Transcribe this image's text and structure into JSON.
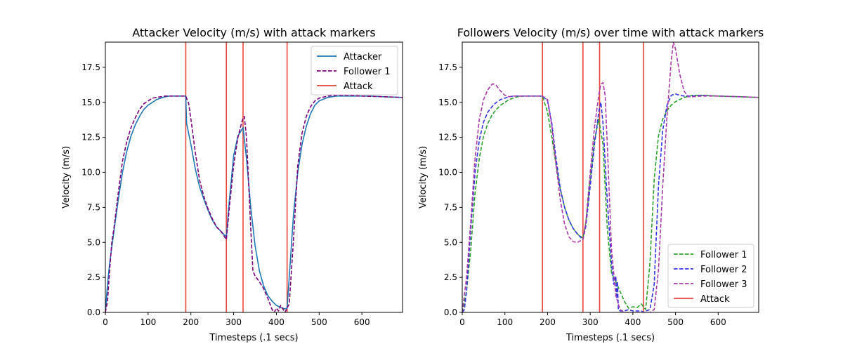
{
  "chart_data": [
    {
      "type": "line",
      "title": "Attacker Velocity (m/s) with attack markers",
      "xlabel": "Timesteps (.1 secs)",
      "ylabel": "Velocity (m/s)",
      "xlim": [
        0,
        695
      ],
      "ylim": [
        0,
        19.3
      ],
      "xticks": [
        0,
        100,
        200,
        300,
        400,
        500,
        600
      ],
      "yticks": [
        0.0,
        2.5,
        5.0,
        7.5,
        10.0,
        12.5,
        15.0,
        17.5
      ],
      "grid": false,
      "legend_position": "top-right",
      "attack_markers": [
        188,
        283,
        322,
        425
      ],
      "attack_label": "Attack",
      "attack_color": "#e8463a",
      "series": [
        {
          "name": "Attacker",
          "color": "#1f77b4",
          "dash": "solid",
          "x": [
            0,
            5,
            10,
            20,
            30,
            40,
            50,
            60,
            70,
            80,
            90,
            100,
            110,
            120,
            130,
            140,
            150,
            160,
            170,
            180,
            188,
            190,
            200,
            210,
            220,
            230,
            240,
            250,
            260,
            270,
            283,
            290,
            300,
            310,
            322,
            330,
            340,
            350,
            360,
            370,
            380,
            390,
            400,
            410,
            420,
            425,
            430,
            440,
            450,
            460,
            470,
            480,
            490,
            500,
            520,
            540,
            560,
            580,
            600,
            620,
            650,
            695
          ],
          "y": [
            0.0,
            2.0,
            3.5,
            5.8,
            8.0,
            10.0,
            11.5,
            12.6,
            13.4,
            14.0,
            14.5,
            14.8,
            15.0,
            15.2,
            15.3,
            15.4,
            15.45,
            15.45,
            15.45,
            15.45,
            15.45,
            13.5,
            12.0,
            10.3,
            9.0,
            8.1,
            7.3,
            6.6,
            6.1,
            5.8,
            5.4,
            8.0,
            11.2,
            12.6,
            13.2,
            11.0,
            7.5,
            4.8,
            3.0,
            1.9,
            1.2,
            0.8,
            0.5,
            0.35,
            0.25,
            0.3,
            2.5,
            7.0,
            10.0,
            12.0,
            13.3,
            14.2,
            14.8,
            15.1,
            15.35,
            15.45,
            15.45,
            15.45,
            15.45,
            15.45,
            15.4,
            15.35
          ]
        },
        {
          "name": "Follower 1",
          "color": "#7a007a",
          "dash": "dashed",
          "x": [
            0,
            5,
            10,
            15,
            20,
            30,
            40,
            50,
            60,
            70,
            80,
            90,
            100,
            110,
            120,
            130,
            140,
            150,
            160,
            170,
            180,
            188,
            195,
            200,
            210,
            220,
            230,
            240,
            250,
            260,
            270,
            283,
            290,
            300,
            310,
            320,
            325,
            330,
            340,
            345,
            350,
            360,
            370,
            380,
            390,
            395,
            400,
            405,
            410,
            420,
            425,
            430,
            440,
            450,
            460,
            470,
            480,
            490,
            500,
            520,
            540,
            560,
            600,
            650,
            695
          ],
          "y": [
            0.0,
            0.8,
            3.0,
            5.0,
            6.0,
            8.5,
            10.8,
            12.2,
            13.2,
            13.9,
            14.5,
            14.9,
            15.1,
            15.3,
            15.35,
            15.4,
            15.45,
            15.45,
            15.45,
            15.45,
            15.45,
            15.45,
            14.9,
            13.8,
            11.5,
            9.5,
            8.3,
            7.4,
            6.7,
            6.1,
            5.8,
            5.2,
            7.5,
            10.5,
            12.5,
            13.7,
            14.0,
            12.5,
            6.0,
            3.0,
            2.6,
            2.2,
            1.7,
            1.0,
            0.2,
            0.0,
            0.3,
            0.1,
            0.5,
            0.0,
            0.3,
            0.6,
            5.2,
            10.5,
            12.8,
            14.0,
            14.7,
            15.1,
            15.3,
            15.45,
            15.5,
            15.5,
            15.45,
            15.4,
            15.35
          ]
        }
      ]
    },
    {
      "type": "line",
      "title": "Followers Velocity (m/s) over time with attack markers",
      "xlabel": "Timesteps (.1 secs)",
      "ylabel": "Velocity (m/s)",
      "xlim": [
        0,
        695
      ],
      "ylim": [
        0,
        19.3
      ],
      "xticks": [
        0,
        100,
        200,
        300,
        400,
        500,
        600
      ],
      "yticks": [
        0.0,
        2.5,
        5.0,
        7.5,
        10.0,
        12.5,
        15.0,
        17.5
      ],
      "grid": false,
      "legend_position": "bottom-right",
      "attack_markers": [
        188,
        283,
        322,
        425
      ],
      "attack_label": "Attack",
      "attack_color": "#e8463a",
      "series": [
        {
          "name": "Follower 1",
          "color": "#2ca02c",
          "dash": "dashed",
          "x": [
            0,
            10,
            20,
            30,
            40,
            50,
            60,
            70,
            80,
            90,
            100,
            110,
            120,
            130,
            140,
            150,
            160,
            170,
            188,
            200,
            210,
            220,
            230,
            240,
            250,
            260,
            270,
            283,
            290,
            300,
            310,
            320,
            330,
            340,
            350,
            355,
            360,
            370,
            380,
            390,
            400,
            410,
            420,
            425,
            430,
            440,
            450,
            460,
            470,
            480,
            490,
            500,
            520,
            540,
            560,
            600,
            650,
            695
          ],
          "y": [
            0.0,
            1.5,
            4.5,
            8.5,
            11.0,
            12.6,
            13.5,
            14.1,
            14.5,
            14.8,
            15.0,
            15.2,
            15.3,
            15.4,
            15.45,
            15.45,
            15.45,
            15.45,
            15.45,
            14.3,
            12.5,
            10.5,
            8.8,
            7.5,
            6.6,
            6.0,
            5.6,
            5.3,
            6.5,
            9.5,
            12.3,
            13.8,
            12.0,
            6.0,
            2.8,
            2.5,
            2.2,
            1.5,
            0.8,
            0.3,
            0.4,
            0.35,
            0.6,
            0.4,
            0.2,
            3.5,
            9.5,
            12.6,
            13.8,
            14.4,
            14.8,
            15.05,
            15.35,
            15.5,
            15.5,
            15.45,
            15.4,
            15.35
          ]
        },
        {
          "name": "Follower 2",
          "color": "#3333e0",
          "dash": "dashed",
          "x": [
            0,
            5,
            10,
            20,
            30,
            40,
            50,
            60,
            70,
            80,
            90,
            100,
            110,
            120,
            130,
            140,
            150,
            160,
            170,
            180,
            188,
            200,
            210,
            220,
            230,
            240,
            250,
            260,
            270,
            283,
            290,
            300,
            310,
            320,
            325,
            330,
            340,
            350,
            355,
            360,
            362,
            364,
            366,
            370,
            380,
            390,
            400,
            410,
            420,
            425,
            430,
            440,
            450,
            460,
            470,
            480,
            490,
            500,
            510,
            520,
            540,
            560,
            600,
            650,
            695
          ],
          "y": [
            0.0,
            0.2,
            1.5,
            6.0,
            10.0,
            12.3,
            13.6,
            14.3,
            14.7,
            15.0,
            15.2,
            15.3,
            15.4,
            15.45,
            15.45,
            15.45,
            15.45,
            15.45,
            15.45,
            15.45,
            15.45,
            15.1,
            13.5,
            11.0,
            8.8,
            7.5,
            6.6,
            6.0,
            5.6,
            5.2,
            6.2,
            9.0,
            12.0,
            14.3,
            15.0,
            13.5,
            8.0,
            3.5,
            2.0,
            2.6,
            1.0,
            2.2,
            0.2,
            0.1,
            0.1,
            0.2,
            0.1,
            0.1,
            0.1,
            0.0,
            0.1,
            0.2,
            2.0,
            9.0,
            13.0,
            14.8,
            15.5,
            15.6,
            15.5,
            15.45,
            15.45,
            15.5,
            15.45,
            15.4,
            15.35
          ]
        },
        {
          "name": "Follower 3",
          "color": "#a83aa8",
          "dash": "dashed",
          "x": [
            0,
            10,
            20,
            30,
            40,
            50,
            60,
            70,
            75,
            80,
            90,
            100,
            110,
            120,
            130,
            140,
            150,
            160,
            170,
            188,
            200,
            210,
            220,
            230,
            240,
            250,
            260,
            270,
            283,
            290,
            300,
            310,
            320,
            325,
            330,
            335,
            340,
            350,
            360,
            370,
            380,
            390,
            400,
            410,
            420,
            430,
            440,
            450,
            460,
            470,
            480,
            490,
            495,
            500,
            510,
            520,
            530,
            540,
            560,
            600,
            650,
            695
          ],
          "y": [
            0.0,
            2.5,
            6.5,
            11.0,
            13.8,
            15.2,
            15.9,
            16.3,
            16.3,
            16.2,
            15.8,
            15.5,
            15.4,
            15.45,
            15.45,
            15.45,
            15.45,
            15.45,
            15.45,
            15.45,
            15.2,
            13.3,
            10.5,
            8.0,
            6.3,
            5.4,
            5.05,
            5.0,
            5.2,
            6.5,
            10.0,
            13.2,
            15.5,
            16.3,
            16.4,
            15.5,
            12.0,
            4.5,
            1.2,
            0.2,
            0.0,
            0.0,
            0.0,
            0.0,
            0.0,
            0.0,
            0.0,
            0.2,
            3.0,
            9.0,
            14.0,
            18.0,
            19.3,
            18.8,
            17.0,
            15.8,
            15.4,
            15.4,
            15.45,
            15.45,
            15.4,
            15.35
          ]
        }
      ]
    }
  ]
}
